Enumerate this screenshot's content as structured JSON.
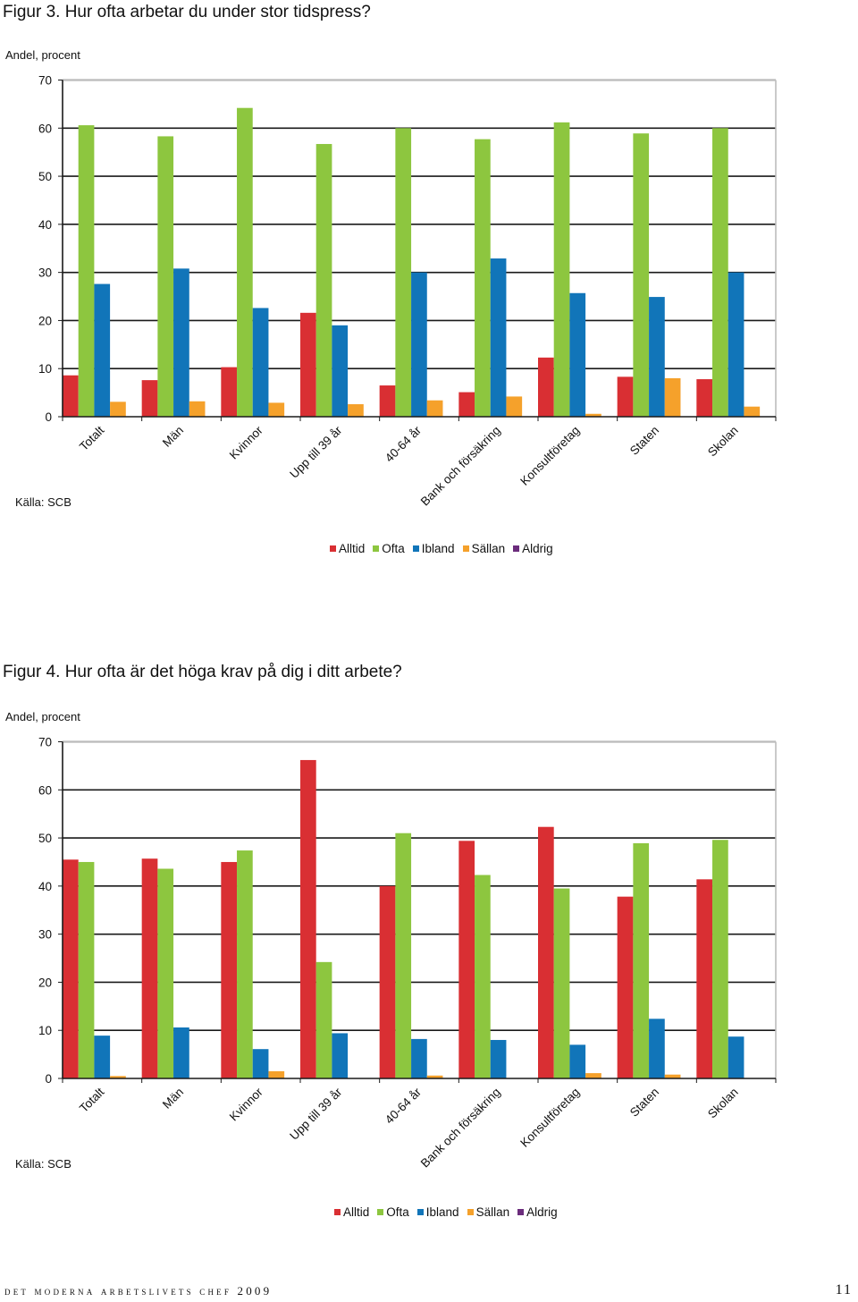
{
  "colors": {
    "Alltid": "#d92f33",
    "Ofta": "#8dc63f",
    "Ibland": "#1175b9",
    "Sällan": "#f5a12b",
    "Aldrig": "#6b2c7c"
  },
  "footer": {
    "text": "det moderna arbetslivets chef 2009",
    "page": "11"
  },
  "figures": [
    {
      "title": "Figur 3. Hur ofta arbetar du under stor tidspress?",
      "ylabel": "Andel, procent",
      "source": "Källa: SCB",
      "legend": [
        "Alltid",
        "Ofta",
        "Ibland",
        "Sällan",
        "Aldrig"
      ]
    },
    {
      "title": "Figur 4. Hur ofta är det höga krav på dig i ditt arbete?",
      "ylabel": "Andel, procent",
      "source": "Källa: SCB",
      "legend": [
        "Alltid",
        "Ofta",
        "Ibland",
        "Sällan",
        "Aldrig"
      ]
    }
  ],
  "chart_data": [
    {
      "type": "bar",
      "title": "Figur 3. Hur ofta arbetar du under stor tidspress?",
      "ylabel": "Andel, procent",
      "ylim": [
        0,
        70
      ],
      "yticks": [
        0,
        10,
        20,
        30,
        40,
        50,
        60,
        70
      ],
      "grid": true,
      "categories": [
        "Totalt",
        "Män",
        "Kvinnor",
        "Upp till 39 år",
        "40-64 år",
        "Bank och försäkring",
        "Konsultföretag",
        "Staten",
        "Skolan"
      ],
      "series": [
        {
          "name": "Alltid",
          "values": [
            8.6,
            7.6,
            10.3,
            21.6,
            6.5,
            5.1,
            12.3,
            8.3,
            7.8
          ]
        },
        {
          "name": "Ofta",
          "values": [
            60.6,
            58.3,
            64.2,
            56.7,
            60.0,
            57.7,
            61.2,
            58.9,
            60.0
          ]
        },
        {
          "name": "Ibland",
          "values": [
            27.6,
            30.8,
            22.6,
            19.0,
            30.0,
            32.9,
            25.7,
            24.9,
            30.0
          ]
        },
        {
          "name": "Sällan",
          "values": [
            3.1,
            3.2,
            2.9,
            2.6,
            3.4,
            4.2,
            0.6,
            8.0,
            2.1
          ]
        },
        {
          "name": "Aldrig",
          "values": [
            0,
            0,
            0,
            0,
            0,
            0,
            0,
            0,
            0
          ]
        }
      ],
      "legend": "bottom-center"
    },
    {
      "type": "bar",
      "title": "Figur 4. Hur ofta är det höga krav på dig i ditt arbete?",
      "ylabel": "Andel, procent",
      "ylim": [
        0,
        70
      ],
      "yticks": [
        0,
        10,
        20,
        30,
        40,
        50,
        60,
        70
      ],
      "grid": true,
      "categories": [
        "Totalt",
        "Män",
        "Kvinnor",
        "Upp till 39 år",
        "40-64 år",
        "Bank och försäkring",
        "Konsultföretag",
        "Staten",
        "Skolan"
      ],
      "series": [
        {
          "name": "Alltid",
          "values": [
            45.5,
            45.7,
            45.0,
            66.2,
            40.0,
            49.4,
            52.3,
            37.8,
            41.4
          ]
        },
        {
          "name": "Ofta",
          "values": [
            45.0,
            43.6,
            47.4,
            24.2,
            51.0,
            42.3,
            39.5,
            48.9,
            49.6
          ]
        },
        {
          "name": "Ibland",
          "values": [
            8.9,
            10.6,
            6.1,
            9.4,
            8.2,
            8.0,
            7.0,
            12.4,
            8.7
          ]
        },
        {
          "name": "Sällan",
          "values": [
            0.5,
            0,
            1.5,
            0,
            0.6,
            0,
            1.1,
            0.8,
            0
          ]
        },
        {
          "name": "Aldrig",
          "values": [
            0,
            0,
            0,
            0,
            0,
            0,
            0,
            0,
            0
          ]
        }
      ],
      "legend": "bottom-center"
    }
  ]
}
